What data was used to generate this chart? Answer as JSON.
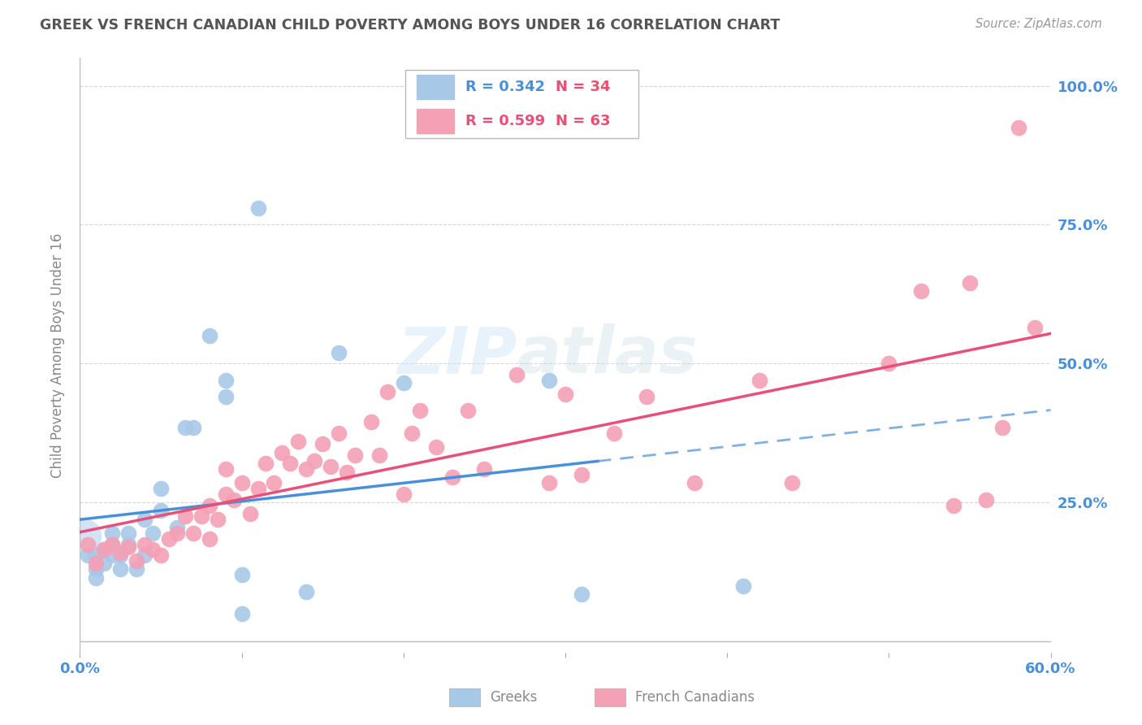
{
  "title": "GREEK VS FRENCH CANADIAN CHILD POVERTY AMONG BOYS UNDER 16 CORRELATION CHART",
  "source": "Source: ZipAtlas.com",
  "ylabel": "Child Poverty Among Boys Under 16",
  "xlim": [
    0.0,
    0.6
  ],
  "ylim": [
    -0.02,
    1.05
  ],
  "ytick_values": [
    0.0,
    0.25,
    0.5,
    0.75,
    1.0
  ],
  "xtick_values": [
    0.0,
    0.1,
    0.2,
    0.3,
    0.4,
    0.5,
    0.6
  ],
  "greek_color": "#a8c8e8",
  "french_color": "#f4a0b5",
  "greek_line_color": "#4a90d9",
  "french_line_color": "#e8507a",
  "greek_R": 0.342,
  "greek_N": 34,
  "french_R": 0.599,
  "french_N": 63,
  "title_color": "#555555",
  "axis_label_color": "#888888",
  "tick_color": "#4a90d9",
  "grid_color": "#cccccc",
  "background_color": "#ffffff",
  "greeks_x": [
    0.005,
    0.01,
    0.01,
    0.01,
    0.015,
    0.015,
    0.02,
    0.02,
    0.02,
    0.025,
    0.025,
    0.03,
    0.03,
    0.035,
    0.04,
    0.04,
    0.045,
    0.05,
    0.05,
    0.06,
    0.065,
    0.07,
    0.08,
    0.09,
    0.09,
    0.1,
    0.1,
    0.11,
    0.14,
    0.16,
    0.2,
    0.29,
    0.31,
    0.41
  ],
  "greeks_y": [
    0.155,
    0.115,
    0.13,
    0.155,
    0.14,
    0.165,
    0.155,
    0.175,
    0.195,
    0.13,
    0.155,
    0.175,
    0.195,
    0.13,
    0.155,
    0.22,
    0.195,
    0.235,
    0.275,
    0.205,
    0.385,
    0.385,
    0.55,
    0.44,
    0.47,
    0.05,
    0.12,
    0.78,
    0.09,
    0.52,
    0.465,
    0.47,
    0.085,
    0.1
  ],
  "french_x": [
    0.005,
    0.01,
    0.015,
    0.02,
    0.025,
    0.03,
    0.035,
    0.04,
    0.045,
    0.05,
    0.055,
    0.06,
    0.065,
    0.07,
    0.075,
    0.08,
    0.08,
    0.085,
    0.09,
    0.09,
    0.095,
    0.1,
    0.105,
    0.11,
    0.115,
    0.12,
    0.125,
    0.13,
    0.135,
    0.14,
    0.145,
    0.15,
    0.155,
    0.16,
    0.165,
    0.17,
    0.18,
    0.185,
    0.19,
    0.2,
    0.205,
    0.21,
    0.22,
    0.23,
    0.24,
    0.25,
    0.27,
    0.29,
    0.3,
    0.31,
    0.33,
    0.35,
    0.38,
    0.42,
    0.44,
    0.5,
    0.52,
    0.54,
    0.55,
    0.56,
    0.57,
    0.58,
    0.59
  ],
  "french_y": [
    0.175,
    0.14,
    0.165,
    0.175,
    0.16,
    0.17,
    0.145,
    0.175,
    0.165,
    0.155,
    0.185,
    0.195,
    0.225,
    0.195,
    0.225,
    0.185,
    0.245,
    0.22,
    0.265,
    0.31,
    0.255,
    0.285,
    0.23,
    0.275,
    0.32,
    0.285,
    0.34,
    0.32,
    0.36,
    0.31,
    0.325,
    0.355,
    0.315,
    0.375,
    0.305,
    0.335,
    0.395,
    0.335,
    0.45,
    0.265,
    0.375,
    0.415,
    0.35,
    0.295,
    0.415,
    0.31,
    0.48,
    0.285,
    0.445,
    0.3,
    0.375,
    0.44,
    0.285,
    0.47,
    0.285,
    0.5,
    0.63,
    0.245,
    0.645,
    0.255,
    0.385,
    0.925,
    0.565
  ]
}
